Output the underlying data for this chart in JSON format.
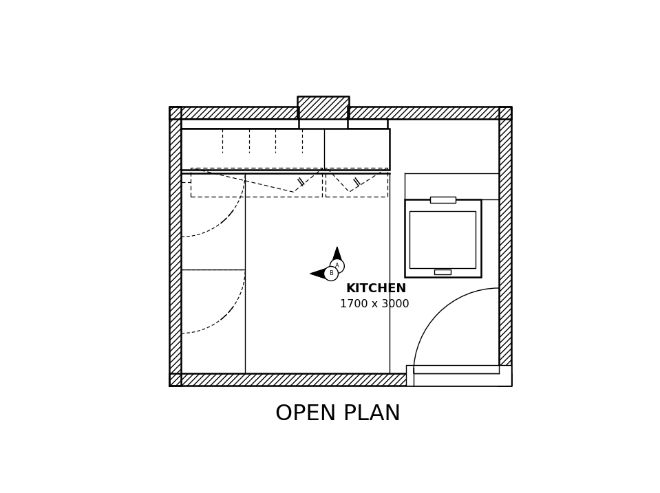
{
  "title": "OPEN PLAN",
  "room_label": "KITCHEN",
  "room_size": "1700 x 3000",
  "bg": "#ffffff",
  "lc": "#000000",
  "L": 0.055,
  "R": 0.955,
  "B": 0.14,
  "T": 0.875,
  "wt": 0.032,
  "lw": 1.8,
  "lt": 1.0
}
